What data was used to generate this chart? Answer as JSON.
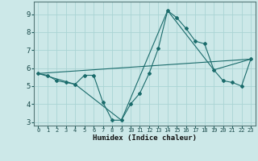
{
  "xlabel": "Humidex (Indice chaleur)",
  "xlim": [
    -0.5,
    23.5
  ],
  "ylim": [
    2.8,
    9.7
  ],
  "yticks": [
    3,
    4,
    5,
    6,
    7,
    8,
    9
  ],
  "xticks": [
    0,
    1,
    2,
    3,
    4,
    5,
    6,
    7,
    8,
    9,
    10,
    11,
    12,
    13,
    14,
    15,
    16,
    17,
    18,
    19,
    20,
    21,
    22,
    23
  ],
  "bg_color": "#cce8e8",
  "grid_color": "#aad4d4",
  "line_color": "#1a6b6b",
  "line1_x": [
    0,
    1,
    2,
    3,
    4,
    5,
    6,
    7,
    8,
    9,
    10,
    11,
    12,
    13,
    14,
    15,
    16,
    17,
    18,
    19,
    20,
    21,
    22,
    23
  ],
  "line1_y": [
    5.7,
    5.6,
    5.3,
    5.2,
    5.1,
    5.6,
    5.6,
    4.1,
    3.1,
    3.1,
    4.0,
    4.6,
    5.7,
    7.1,
    9.2,
    8.8,
    8.2,
    7.5,
    7.35,
    5.9,
    5.3,
    5.2,
    5.0,
    6.5
  ],
  "line2_x": [
    0,
    23
  ],
  "line2_y": [
    5.7,
    6.5
  ],
  "line3_x": [
    0,
    4,
    9,
    14,
    19,
    23
  ],
  "line3_y": [
    5.7,
    5.1,
    3.1,
    9.2,
    5.9,
    6.5
  ],
  "marker_x": [
    0,
    1,
    2,
    3,
    4,
    5,
    6,
    7,
    8,
    9,
    10,
    11,
    12,
    13,
    14,
    15,
    16,
    17,
    18,
    19,
    20,
    21,
    22,
    23
  ],
  "marker_y": [
    5.7,
    5.6,
    5.3,
    5.2,
    5.1,
    5.6,
    5.6,
    4.1,
    3.1,
    3.1,
    4.0,
    4.6,
    5.7,
    7.1,
    9.2,
    8.8,
    8.2,
    7.5,
    7.35,
    5.9,
    5.3,
    5.2,
    5.0,
    6.5
  ]
}
